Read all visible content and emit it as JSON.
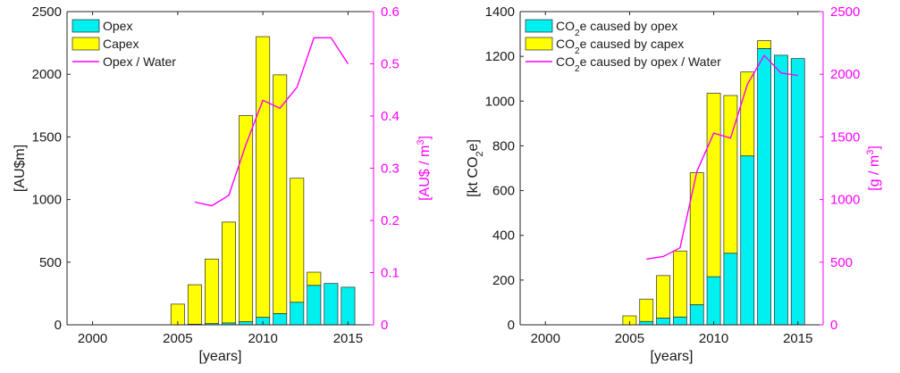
{
  "colors": {
    "opex": "#00f0f0",
    "capex": "#ffff00",
    "line": "#ff00ff",
    "edge": "#2a2a2a"
  },
  "chart_data": [
    {
      "type": "bar",
      "stacked": true,
      "xlabel": "[years]",
      "ylabel": "[AU$m]",
      "ylabel_right": "[AU$ / m",
      "ylabel_right_sup": "3",
      "ylabel_right_end": "]",
      "xlim": [
        1998.5,
        2016.5
      ],
      "ylim": [
        0,
        2500
      ],
      "ylim_right": [
        0,
        0.6
      ],
      "xticks": [
        2000,
        2005,
        2010,
        2015
      ],
      "yticks": [
        0,
        500,
        1000,
        1500,
        2000,
        2500
      ],
      "yticks_right": [
        0,
        0.1,
        0.2,
        0.3,
        0.4,
        0.5,
        0.6
      ],
      "ytick_labels_right": [
        "0",
        "0.1",
        "0.2",
        "0.3",
        "0.4",
        "0.5",
        "0.6"
      ],
      "grid": false,
      "legend_placement": "top-left",
      "legend": [
        {
          "label": "Opex",
          "kind": "box",
          "color_key": "opex"
        },
        {
          "label": "Capex",
          "kind": "box",
          "color_key": "capex"
        },
        {
          "label": "Opex / Water",
          "kind": "line",
          "color_key": "line"
        }
      ],
      "x": [
        2005,
        2006,
        2007,
        2008,
        2009,
        2010,
        2011,
        2012,
        2013,
        2014,
        2015
      ],
      "series": [
        {
          "name": "Opex",
          "axis": "left",
          "values": [
            0,
            5,
            10,
            15,
            25,
            60,
            90,
            180,
            315,
            330,
            300
          ]
        },
        {
          "name": "Capex",
          "axis": "left",
          "values": [
            165,
            315,
            515,
            805,
            1645,
            2240,
            1905,
            990,
            105,
            0,
            0
          ]
        },
        {
          "name": "Opex / Water",
          "axis": "right",
          "kind": "line",
          "x": [
            2006,
            2007,
            2008,
            2009,
            2010,
            2011,
            2012,
            2013,
            2014,
            2015
          ],
          "values": [
            0.235,
            0.228,
            0.248,
            0.345,
            0.43,
            0.415,
            0.455,
            0.55,
            0.55,
            0.5
          ]
        }
      ]
    },
    {
      "type": "bar",
      "stacked": true,
      "xlabel": "[years]",
      "ylabel": "[kt CO",
      "ylabel_sub": "2",
      "ylabel_end": "e]",
      "ylabel_right": "[g / m",
      "ylabel_right_sup": "3",
      "ylabel_right_end": "]",
      "xlim": [
        1998.5,
        2016.5
      ],
      "ylim": [
        0,
        1400
      ],
      "ylim_right": [
        0,
        2500
      ],
      "xticks": [
        2000,
        2005,
        2010,
        2015
      ],
      "yticks": [
        0,
        200,
        400,
        600,
        800,
        1000,
        1200,
        1400
      ],
      "yticks_right": [
        0,
        500,
        1000,
        1500,
        2000,
        2500
      ],
      "ytick_labels_right": [
        "0",
        "500",
        "1000",
        "1500",
        "2000",
        "2500"
      ],
      "grid": false,
      "legend_placement": "top-left",
      "legend": [
        {
          "label_pre": "CO",
          "label_sub": "2",
          "label_post": "e caused by opex",
          "kind": "box",
          "color_key": "opex"
        },
        {
          "label_pre": "CO",
          "label_sub": "2",
          "label_post": "e caused by capex",
          "kind": "box",
          "color_key": "capex"
        },
        {
          "label_pre": "CO",
          "label_sub": "2",
          "label_post": "e caused by opex / Water",
          "kind": "line",
          "color_key": "line"
        }
      ],
      "x": [
        2005,
        2006,
        2007,
        2008,
        2009,
        2010,
        2011,
        2012,
        2013,
        2014,
        2015
      ],
      "series": [
        {
          "name": "CO2e caused by opex",
          "axis": "left",
          "values": [
            0,
            15,
            30,
            35,
            90,
            215,
            320,
            755,
            1235,
            1205,
            1190
          ]
        },
        {
          "name": "CO2e caused by capex",
          "axis": "left",
          "values": [
            40,
            100,
            190,
            295,
            590,
            820,
            705,
            375,
            35,
            0,
            0
          ]
        },
        {
          "name": "CO2e caused by opex / Water",
          "axis": "right",
          "kind": "line",
          "x": [
            2006,
            2007,
            2008,
            2009,
            2010,
            2011,
            2012,
            2013,
            2014,
            2015
          ],
          "values": [
            525,
            545,
            615,
            1225,
            1530,
            1490,
            1920,
            2150,
            2010,
            1990
          ]
        }
      ]
    }
  ]
}
